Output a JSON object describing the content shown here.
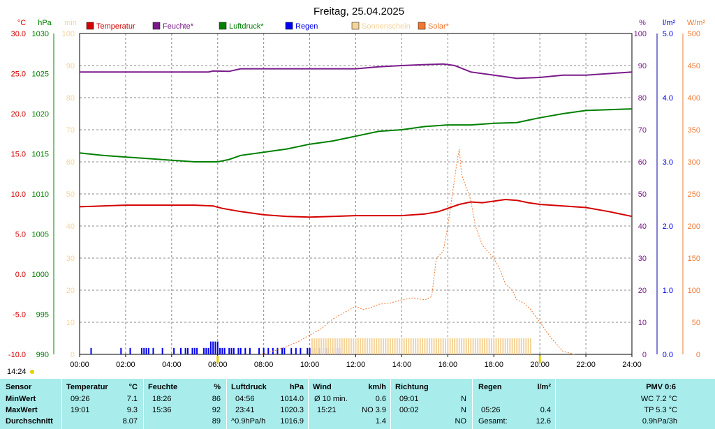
{
  "title": "Freitag, 25.04.2025",
  "legend": [
    {
      "label": "Temperatur",
      "color": "#d40000"
    },
    {
      "label": "Feuchte*",
      "color": "#7a1a8a"
    },
    {
      "label": "Luftdruck*",
      "color": "#008000"
    },
    {
      "label": "Regen",
      "color": "#0000ee"
    },
    {
      "label": "Sonnenschein",
      "color": "#f5d49a"
    },
    {
      "label": "Solar*",
      "color": "#f07830"
    }
  ],
  "time_label": "14:24",
  "chart_data": {
    "type": "line",
    "title": "Freitag, 25.04.2025",
    "x_unit": "hours",
    "x_ticks": [
      "00:00",
      "02:00",
      "04:00",
      "06:00",
      "08:00",
      "10:00",
      "12:00",
      "14:00",
      "16:00",
      "18:00",
      "20:00",
      "22:00",
      "24:00"
    ],
    "axes": {
      "temperature": {
        "unit": "°C",
        "min": -10,
        "max": 30,
        "ticks": [
          "-10.0",
          "-5.0",
          "0.0",
          "5.0",
          "10.0",
          "15.0",
          "20.0",
          "25.0",
          "30.0"
        ],
        "color": "#d40000"
      },
      "pressure": {
        "unit": "hPa",
        "min": 990,
        "max": 1030,
        "ticks": [
          "990",
          "995",
          "1000",
          "1005",
          "1010",
          "1015",
          "1020",
          "1025",
          "1030"
        ],
        "color": "#008000"
      },
      "sunshine": {
        "unit": "min",
        "min": 0,
        "max": 100,
        "ticks": [
          "0",
          "10",
          "20",
          "30",
          "40",
          "50",
          "60",
          "70",
          "80",
          "90",
          "100"
        ],
        "color": "#f5d49a"
      },
      "humidity": {
        "unit": "%",
        "min": 0,
        "max": 100,
        "ticks": [
          "0",
          "10",
          "20",
          "30",
          "40",
          "50",
          "60",
          "70",
          "80",
          "90",
          "100"
        ],
        "color": "#7a1a8a"
      },
      "rain": {
        "unit": "l/m²",
        "min": 0,
        "max": 5,
        "ticks": [
          "0.0",
          "1.0",
          "2.0",
          "3.0",
          "4.0",
          "5.0"
        ],
        "color": "#0000ee"
      },
      "solar": {
        "unit": "W/m²",
        "min": 0,
        "max": 500,
        "ticks": [
          "0",
          "50",
          "100",
          "150",
          "200",
          "250",
          "300",
          "350",
          "400",
          "450",
          "500"
        ],
        "color": "#f07830"
      }
    },
    "series": [
      {
        "name": "Temperatur",
        "axis": "temperature",
        "color": "#d40000",
        "points": [
          [
            0,
            8.4
          ],
          [
            1,
            8.5
          ],
          [
            2,
            8.6
          ],
          [
            3,
            8.6
          ],
          [
            4,
            8.6
          ],
          [
            5,
            8.6
          ],
          [
            5.8,
            8.5
          ],
          [
            6.2,
            8.2
          ],
          [
            7,
            7.8
          ],
          [
            8,
            7.4
          ],
          [
            9,
            7.2
          ],
          [
            10,
            7.1
          ],
          [
            11,
            7.2
          ],
          [
            12,
            7.3
          ],
          [
            13,
            7.3
          ],
          [
            14,
            7.3
          ],
          [
            15,
            7.5
          ],
          [
            15.6,
            7.8
          ],
          [
            16,
            8.2
          ],
          [
            16.5,
            8.7
          ],
          [
            17,
            9.0
          ],
          [
            17.5,
            8.9
          ],
          [
            18,
            9.1
          ],
          [
            18.5,
            9.3
          ],
          [
            19,
            9.2
          ],
          [
            19.5,
            8.9
          ],
          [
            20,
            8.7
          ],
          [
            21,
            8.5
          ],
          [
            22,
            8.3
          ],
          [
            23,
            7.8
          ],
          [
            24,
            7.2
          ]
        ]
      },
      {
        "name": "Feuchte*",
        "axis": "humidity",
        "color": "#7a1a8a",
        "points": [
          [
            0,
            88
          ],
          [
            2,
            88
          ],
          [
            4,
            88
          ],
          [
            5.6,
            88
          ],
          [
            5.8,
            88.3
          ],
          [
            6.5,
            88.2
          ],
          [
            7,
            89
          ],
          [
            8,
            89
          ],
          [
            10,
            89
          ],
          [
            12,
            89
          ],
          [
            13,
            89.6
          ],
          [
            14,
            90
          ],
          [
            15,
            90.3
          ],
          [
            15.8,
            90.5
          ],
          [
            16.3,
            90
          ],
          [
            17,
            88
          ],
          [
            18,
            87
          ],
          [
            19,
            86
          ],
          [
            20,
            86.3
          ],
          [
            21,
            87
          ],
          [
            22,
            87
          ],
          [
            23,
            87.5
          ],
          [
            24,
            88
          ]
        ]
      },
      {
        "name": "Luftdruck*",
        "axis": "pressure",
        "color": "#008000",
        "points": [
          [
            0,
            1015.1
          ],
          [
            1,
            1014.8
          ],
          [
            2,
            1014.6
          ],
          [
            3,
            1014.4
          ],
          [
            4,
            1014.2
          ],
          [
            5,
            1014.0
          ],
          [
            6,
            1014.0
          ],
          [
            6.5,
            1014.3
          ],
          [
            7,
            1014.8
          ],
          [
            8,
            1015.2
          ],
          [
            9,
            1015.6
          ],
          [
            10,
            1016.2
          ],
          [
            11,
            1016.6
          ],
          [
            12,
            1017.2
          ],
          [
            13,
            1017.8
          ],
          [
            14,
            1018.0
          ],
          [
            15,
            1018.4
          ],
          [
            16,
            1018.6
          ],
          [
            17,
            1018.6
          ],
          [
            18,
            1018.8
          ],
          [
            19,
            1018.9
          ],
          [
            20,
            1019.5
          ],
          [
            21,
            1020.0
          ],
          [
            22,
            1020.4
          ],
          [
            23,
            1020.5
          ],
          [
            24,
            1020.6
          ]
        ]
      },
      {
        "name": "Solar*",
        "axis": "solar",
        "color": "#f07830",
        "points": [
          [
            7.9,
            0
          ],
          [
            8.5,
            6
          ],
          [
            9,
            12
          ],
          [
            9.5,
            20
          ],
          [
            10,
            30
          ],
          [
            10.5,
            40
          ],
          [
            11,
            55
          ],
          [
            11.5,
            65
          ],
          [
            12,
            75
          ],
          [
            12.3,
            70
          ],
          [
            12.6,
            72
          ],
          [
            13,
            78
          ],
          [
            13.5,
            80
          ],
          [
            14,
            85
          ],
          [
            14.5,
            88
          ],
          [
            15,
            85
          ],
          [
            15.3,
            90
          ],
          [
            15.5,
            150
          ],
          [
            15.8,
            160
          ],
          [
            16,
            200
          ],
          [
            16.2,
            250
          ],
          [
            16.4,
            300
          ],
          [
            16.5,
            320
          ],
          [
            16.6,
            280
          ],
          [
            16.8,
            260
          ],
          [
            17,
            240
          ],
          [
            17.2,
            200
          ],
          [
            17.5,
            170
          ],
          [
            18,
            150
          ],
          [
            18.3,
            130
          ],
          [
            18.5,
            110
          ],
          [
            18.8,
            100
          ],
          [
            19,
            85
          ],
          [
            19.3,
            80
          ],
          [
            19.6,
            70
          ],
          [
            20,
            50
          ],
          [
            20.5,
            25
          ],
          [
            21,
            5
          ],
          [
            21.5,
            0
          ]
        ]
      },
      {
        "name": "Regen",
        "axis": "rain",
        "color": "#0000ee",
        "bars": [
          [
            0.5,
            0.1
          ],
          [
            1.8,
            0.1
          ],
          [
            2.2,
            0.1
          ],
          [
            2.7,
            0.1
          ],
          [
            2.8,
            0.1
          ],
          [
            2.9,
            0.1
          ],
          [
            3.0,
            0.1
          ],
          [
            3.2,
            0.1
          ],
          [
            3.6,
            0.1
          ],
          [
            4.1,
            0.1
          ],
          [
            4.4,
            0.1
          ],
          [
            4.6,
            0.1
          ],
          [
            4.7,
            0.1
          ],
          [
            4.9,
            0.1
          ],
          [
            5.0,
            0.1
          ],
          [
            5.1,
            0.1
          ],
          [
            5.4,
            0.1
          ],
          [
            5.5,
            0.1
          ],
          [
            5.6,
            0.1
          ],
          [
            5.7,
            0.2
          ],
          [
            5.8,
            0.2
          ],
          [
            5.9,
            0.2
          ],
          [
            6.0,
            0.2
          ],
          [
            6.1,
            0.1
          ],
          [
            6.2,
            0.1
          ],
          [
            6.3,
            0.1
          ],
          [
            6.5,
            0.1
          ],
          [
            6.6,
            0.1
          ],
          [
            6.7,
            0.1
          ],
          [
            6.9,
            0.1
          ],
          [
            7.0,
            0.1
          ],
          [
            7.2,
            0.1
          ],
          [
            7.4,
            0.1
          ],
          [
            7.8,
            0.1
          ],
          [
            8.0,
            0.1
          ],
          [
            8.2,
            0.1
          ],
          [
            8.4,
            0.1
          ],
          [
            8.6,
            0.1
          ],
          [
            8.8,
            0.1
          ],
          [
            8.9,
            0.1
          ],
          [
            9.2,
            0.1
          ],
          [
            9.4,
            0.1
          ],
          [
            9.6,
            0.1
          ],
          [
            9.9,
            0.1
          ],
          [
            10.0,
            0.1
          ],
          [
            10.2,
            0.1
          ],
          [
            10.4,
            0.1
          ],
          [
            10.5,
            0.1
          ],
          [
            10.7,
            0.1
          ],
          [
            10.8,
            0.1
          ],
          [
            11.0,
            0.1
          ],
          [
            11.2,
            0.1
          ],
          [
            11.3,
            0.1
          ],
          [
            14.2,
            0.1
          ]
        ]
      },
      {
        "name": "Sonnenschein",
        "axis": "sunshine",
        "color": "#f5d49a",
        "ranges": [
          [
            10.1,
            19.6
          ]
        ],
        "value": 5
      }
    ]
  },
  "stats": {
    "sensor": {
      "header": "Sensor",
      "rows": [
        "MinWert",
        "MaxWert",
        "Durchschnitt"
      ]
    },
    "temperature": {
      "header": "Temperatur",
      "unit": "°C",
      "rows": [
        [
          "09:26",
          "7.1"
        ],
        [
          "19:01",
          "9.3"
        ],
        [
          "",
          "8.07"
        ]
      ]
    },
    "humidity": {
      "header": "Feuchte",
      "unit": "%",
      "rows": [
        [
          "18:26",
          "86"
        ],
        [
          "15:36",
          "92"
        ],
        [
          "",
          "89"
        ]
      ]
    },
    "pressure": {
      "header": "Luftdruck",
      "unit": "hPa",
      "rows": [
        [
          "04:56",
          "1014.0"
        ],
        [
          "23:41",
          "1020.3"
        ],
        [
          "^0.9hPa/h",
          "1016.9"
        ]
      ]
    },
    "wind": {
      "header": "Wind",
      "unit": "km/h",
      "rows": [
        [
          "Ø 10 min.",
          "0.6"
        ],
        [
          "15:21",
          "NO 3.9"
        ],
        [
          "",
          "1.4"
        ]
      ]
    },
    "direction": {
      "header": "Richtung",
      "rows": [
        [
          "09:01",
          "N"
        ],
        [
          "00:02",
          "N"
        ],
        [
          "",
          "NO"
        ]
      ]
    },
    "rain": {
      "header": "Regen",
      "unit": "l/m²",
      "rows": [
        [
          "",
          ""
        ],
        [
          "05:26",
          "0.4"
        ],
        [
          "Gesamt:",
          "12.6"
        ]
      ]
    },
    "pmv": {
      "header": "PMV 0:6",
      "rows": [
        "WC 7.2 °C",
        "TP 5.3 °C",
        "0.9hPa/3h"
      ]
    }
  }
}
